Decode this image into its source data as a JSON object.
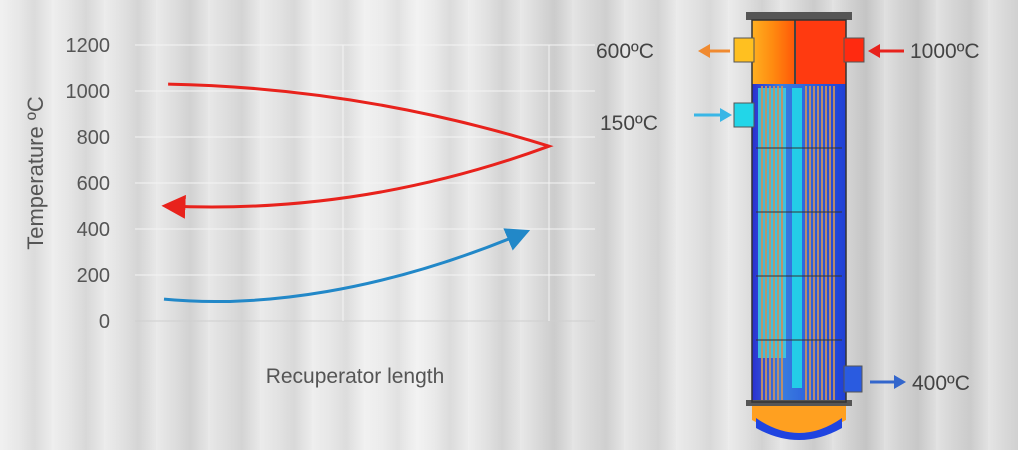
{
  "chart_data": {
    "type": "line",
    "xlabel": "Recuperator length",
    "ylabel": "Temperature ºC",
    "ylim": [
      0,
      1200
    ],
    "yticks": [
      "0",
      "200",
      "400",
      "600",
      "800",
      "1000",
      "1200"
    ],
    "grid": true,
    "series": [
      {
        "x": [
          0.08,
          0.5,
          1.0,
          0.5,
          0.03
        ],
        "values": [
          1030,
          970,
          760,
          570,
          500
        ],
        "color": "#e8221c",
        "arrow": "end"
      },
      {
        "x": [
          0.07,
          0.3,
          0.6,
          0.97
        ],
        "values": [
          95,
          90,
          170,
          420
        ],
        "color": "#2288c8",
        "arrow": "end"
      }
    ]
  },
  "diagram": {
    "labels": {
      "hot_in": "1000ºC",
      "hot_out": "600ºC",
      "cold_in": "150ºC",
      "cold_out": "400ºC"
    },
    "colors": {
      "hot": "#e8221c",
      "warm": "#f08a30",
      "cold_in": "#39b6e6",
      "cold_out": "#3366cc"
    }
  }
}
